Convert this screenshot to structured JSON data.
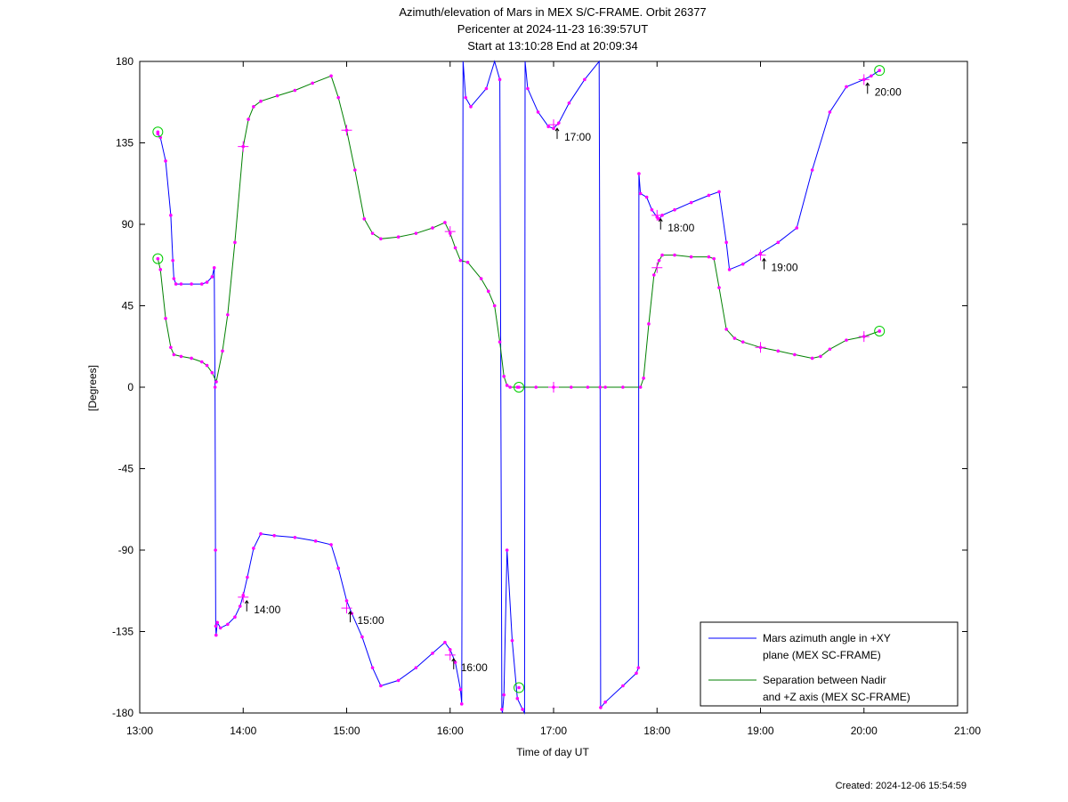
{
  "chart_data": {
    "type": "line",
    "title": [
      "Azimuth/elevation of Mars in MEX S/C-FRAME.  Orbit 26377",
      "Pericenter at 2024-11-23 16:39:57UT",
      "Start at 13:10:28 End at 20:09:34"
    ],
    "xlabel": "Time of day UT",
    "ylabel": "[Degrees]",
    "xlim": [
      13.0,
      21.0
    ],
    "ylim": [
      -180,
      180
    ],
    "x_ticks": [
      {
        "v": 13,
        "label": "13:00"
      },
      {
        "v": 14,
        "label": "14:00"
      },
      {
        "v": 15,
        "label": "15:00"
      },
      {
        "v": 16,
        "label": "16:00"
      },
      {
        "v": 17,
        "label": "17:00"
      },
      {
        "v": 18,
        "label": "18:00"
      },
      {
        "v": 19,
        "label": "19:00"
      },
      {
        "v": 20,
        "label": "20:00"
      },
      {
        "v": 21,
        "label": "21:00"
      }
    ],
    "y_ticks": [
      {
        "v": 180,
        "label": "180"
      },
      {
        "v": 135,
        "label": "135"
      },
      {
        "v": 90,
        "label": "90"
      },
      {
        "v": 45,
        "label": "45"
      },
      {
        "v": 0,
        "label": "0"
      },
      {
        "v": -45,
        "label": "-45"
      },
      {
        "v": -90,
        "label": "-90"
      },
      {
        "v": -135,
        "label": "-135"
      },
      {
        "v": -180,
        "label": "-180"
      }
    ],
    "legend_position": "bottom-right",
    "series": [
      {
        "name": "Mars azimuth angle in +XY plane (MEX SC-FRAME)",
        "legend_lines": [
          "Mars azimuth angle in +XY",
          "plane (MEX SC-FRAME)"
        ],
        "color": "#0000ff",
        "x": [
          13.175,
          13.2,
          13.25,
          13.3,
          13.32,
          13.33,
          13.35,
          13.4,
          13.5,
          13.6,
          13.65,
          13.7,
          13.72,
          13.728,
          13.732,
          13.735,
          13.738,
          13.75,
          13.78,
          13.85,
          13.92,
          13.97,
          14.0,
          14.04,
          14.1,
          14.17,
          14.3,
          14.5,
          14.7,
          14.85,
          14.92,
          15.0,
          15.05,
          15.15,
          15.25,
          15.33,
          15.5,
          15.67,
          15.83,
          15.95,
          16.0,
          16.05,
          16.1,
          16.112,
          16.125,
          16.15,
          16.2,
          16.35,
          16.43,
          16.48,
          16.5,
          16.505,
          16.52,
          16.55,
          16.6,
          16.65,
          16.7,
          16.72,
          16.725,
          16.75,
          16.85,
          16.95,
          17.0,
          17.05,
          17.15,
          17.3,
          17.44,
          17.45,
          17.455,
          17.5,
          17.67,
          17.8,
          17.82,
          17.825,
          17.84,
          17.9,
          17.95,
          18.0,
          18.02,
          18.05,
          18.17,
          18.33,
          18.5,
          18.6,
          18.67,
          18.7,
          18.83,
          19.0,
          19.17,
          19.35,
          19.5,
          19.67,
          19.83,
          20.0,
          20.07,
          20.15
        ],
        "y": [
          140,
          138,
          125,
          95,
          70,
          60,
          57,
          57,
          57,
          57,
          58,
          61,
          66,
          0,
          -90,
          -132,
          -137,
          -130,
          -133,
          -131,
          -127,
          -121,
          -115,
          -105,
          -89,
          -81,
          -82,
          -83,
          -85,
          -87,
          -100,
          -118,
          -125,
          -138,
          -155,
          -165,
          -162,
          -155,
          -147,
          -141,
          -145,
          -152,
          -167,
          -175,
          180,
          160,
          155,
          165,
          180,
          170,
          -178,
          -180,
          -170,
          -90,
          -140,
          -172,
          -178,
          -180,
          180,
          165,
          152,
          144,
          143,
          146,
          157,
          170,
          180,
          0,
          -177,
          -174,
          -165,
          -158,
          -155,
          118,
          107,
          105,
          98,
          94,
          93,
          95,
          98,
          102,
          106,
          108,
          80,
          65,
          68,
          74,
          80,
          88,
          120,
          152,
          166,
          170,
          172,
          175
        ]
      },
      {
        "name": "Separation between Nadir and +Z axis (MEX SC-FRAME)",
        "legend_lines": [
          "Separation between Nadir",
          "and +Z axis (MEX SC-FRAME)"
        ],
        "color": "#008000",
        "x": [
          13.175,
          13.2,
          13.25,
          13.3,
          13.33,
          13.4,
          13.5,
          13.6,
          13.65,
          13.7,
          13.74,
          13.8,
          13.85,
          13.92,
          14.0,
          14.05,
          14.1,
          14.17,
          14.33,
          14.5,
          14.67,
          14.85,
          14.92,
          15.0,
          15.08,
          15.17,
          15.25,
          15.33,
          15.5,
          15.67,
          15.83,
          15.95,
          16.0,
          16.05,
          16.1,
          16.17,
          16.3,
          16.37,
          16.43,
          16.48,
          16.52,
          16.55,
          16.58,
          16.65,
          16.83,
          17.0,
          17.17,
          17.33,
          17.5,
          17.67,
          17.84,
          17.87,
          17.92,
          17.97,
          18.02,
          18.05,
          18.17,
          18.33,
          18.5,
          18.55,
          18.6,
          18.67,
          18.75,
          18.83,
          19.0,
          19.17,
          19.33,
          19.5,
          19.58,
          19.67,
          19.83,
          20.0,
          20.15
        ],
        "y": [
          71,
          65,
          38,
          22,
          18,
          17,
          16,
          14,
          12,
          8,
          3,
          20,
          40,
          80,
          133,
          148,
          155,
          158,
          161,
          164,
          168,
          172,
          160,
          142,
          120,
          93,
          85,
          82,
          83,
          85,
          88,
          91,
          85,
          77,
          70,
          69,
          60,
          53,
          45,
          25,
          6,
          1,
          0,
          0,
          0,
          0,
          0,
          0,
          0,
          0,
          0,
          5,
          35,
          62,
          70,
          73,
          73,
          72,
          72,
          71,
          55,
          32,
          27,
          25,
          22,
          20,
          18,
          16,
          17,
          21,
          26,
          28,
          31
        ]
      }
    ],
    "time_labels": [
      {
        "label": "14:00",
        "x": 14.0,
        "y": -116
      },
      {
        "label": "15:00",
        "x": 15.0,
        "y": -122
      },
      {
        "label": "16:00",
        "x": 16.0,
        "y": -148
      },
      {
        "label": "17:00",
        "x": 17.0,
        "y": 145
      },
      {
        "label": "18:00",
        "x": 18.0,
        "y": 95
      },
      {
        "label": "19:00",
        "x": 19.0,
        "y": 73
      },
      {
        "label": "20:00",
        "x": 20.0,
        "y": 170
      }
    ],
    "plus_markers": [
      {
        "x": 14.0,
        "y": -116
      },
      {
        "x": 15.0,
        "y": -122
      },
      {
        "x": 16.0,
        "y": -148
      },
      {
        "x": 17.0,
        "y": 145
      },
      {
        "x": 18.0,
        "y": 95
      },
      {
        "x": 19.0,
        "y": 73
      },
      {
        "x": 20.0,
        "y": 170
      },
      {
        "x": 14.0,
        "y": 133
      },
      {
        "x": 15.0,
        "y": 142
      },
      {
        "x": 16.0,
        "y": 86
      },
      {
        "x": 17.0,
        "y": 0
      },
      {
        "x": 18.0,
        "y": 66
      },
      {
        "x": 19.0,
        "y": 22
      },
      {
        "x": 20.0,
        "y": 28
      }
    ],
    "circle_markers": [
      {
        "x": 13.175,
        "y": 141
      },
      {
        "x": 13.175,
        "y": 71
      },
      {
        "x": 20.15,
        "y": 175
      },
      {
        "x": 20.15,
        "y": 31
      },
      {
        "x": 16.665,
        "y": 0
      },
      {
        "x": 16.665,
        "y": -166
      }
    ]
  },
  "footer": {
    "created": "Created: 2024-12-06 15:54:59"
  }
}
